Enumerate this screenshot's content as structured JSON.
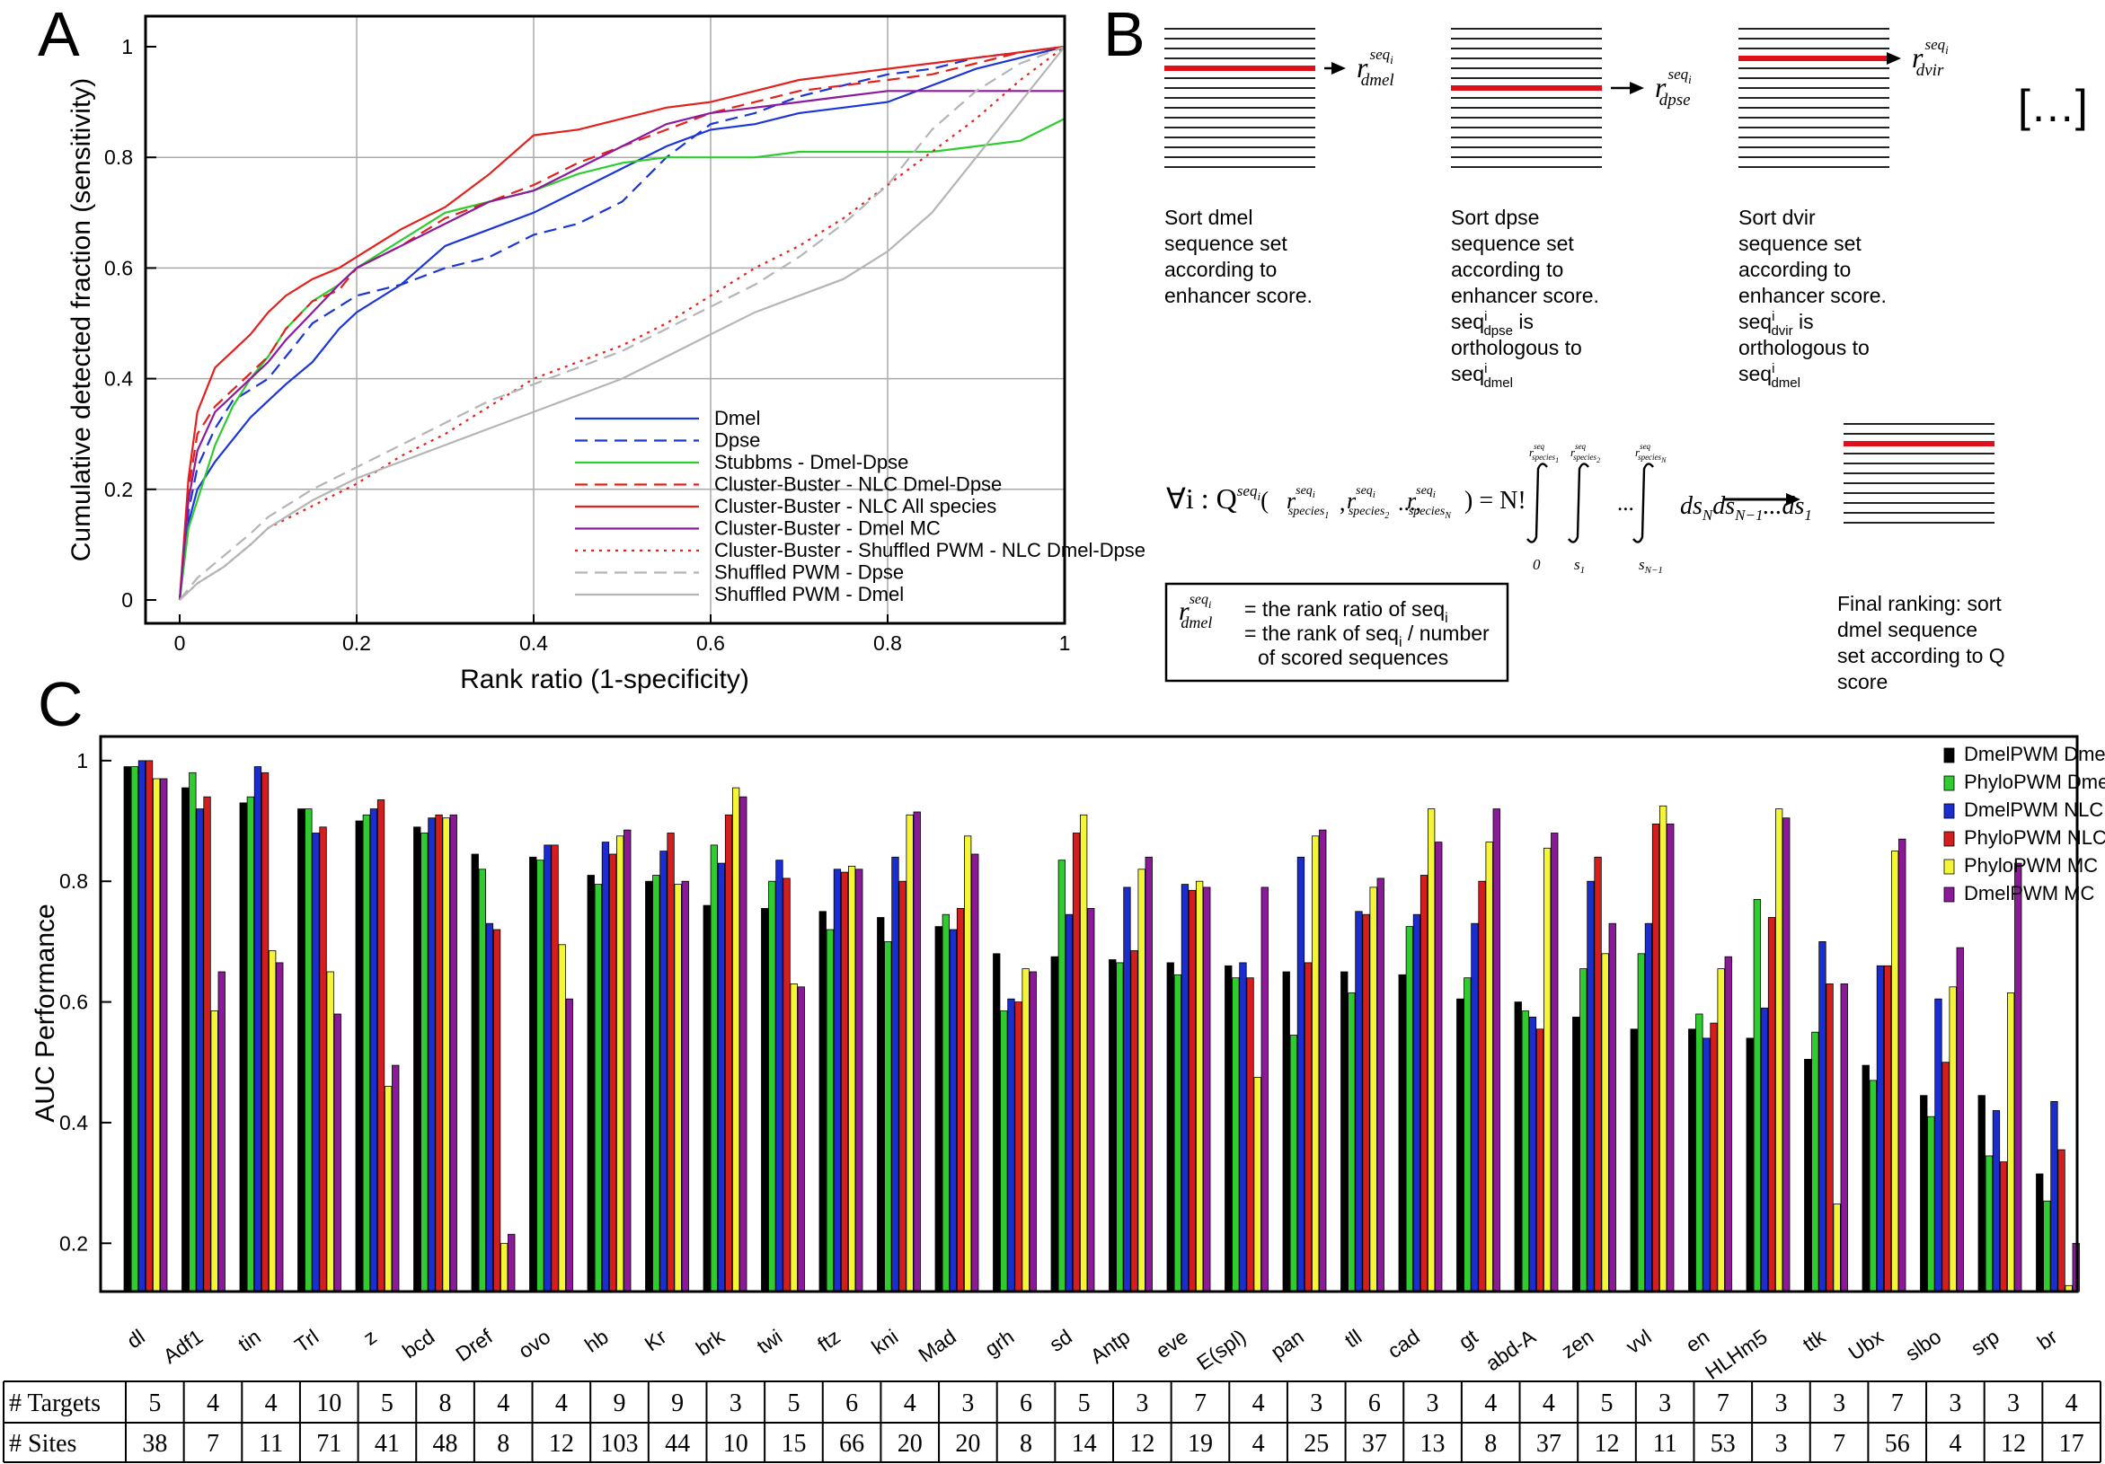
{
  "panels": {
    "a": "A",
    "b": "B",
    "c": "C"
  },
  "chart_data": [
    {
      "type": "line",
      "xlabel": "Rank ratio (1-specificity)",
      "ylabel": "Cumulative detected fraction (sensitivity)",
      "xlim": [
        0,
        1
      ],
      "ylim": [
        0,
        1
      ],
      "xticks": [
        "0",
        "0.2",
        "0.4",
        "0.6",
        "0.8",
        "1"
      ],
      "yticks": [
        "0",
        "0.2",
        "0.4",
        "0.6",
        "0.8",
        "1"
      ],
      "grid": true,
      "legend_position": "bottom-right",
      "series": [
        {
          "name": "Dmel",
          "color": "#1a35d8",
          "dash": "solid",
          "x": [
            0,
            0.01,
            0.02,
            0.04,
            0.06,
            0.08,
            0.1,
            0.12,
            0.15,
            0.18,
            0.2,
            0.25,
            0.3,
            0.35,
            0.4,
            0.45,
            0.5,
            0.55,
            0.6,
            0.65,
            0.7,
            0.75,
            0.8,
            0.85,
            0.9,
            0.95,
            1
          ],
          "y": [
            0,
            0.14,
            0.2,
            0.25,
            0.29,
            0.33,
            0.36,
            0.39,
            0.43,
            0.49,
            0.52,
            0.57,
            0.64,
            0.67,
            0.7,
            0.74,
            0.78,
            0.82,
            0.85,
            0.86,
            0.88,
            0.89,
            0.9,
            0.93,
            0.96,
            0.98,
            1
          ]
        },
        {
          "name": "Dpse",
          "color": "#1a35d8",
          "dash": "dashed",
          "x": [
            0,
            0.01,
            0.02,
            0.04,
            0.06,
            0.08,
            0.1,
            0.12,
            0.15,
            0.18,
            0.2,
            0.25,
            0.3,
            0.35,
            0.4,
            0.45,
            0.5,
            0.55,
            0.6,
            0.65,
            0.7,
            0.75,
            0.8,
            0.85,
            0.9,
            0.95,
            1
          ],
          "y": [
            0,
            0.16,
            0.24,
            0.31,
            0.36,
            0.38,
            0.4,
            0.44,
            0.5,
            0.53,
            0.55,
            0.57,
            0.6,
            0.62,
            0.66,
            0.68,
            0.72,
            0.8,
            0.86,
            0.88,
            0.91,
            0.93,
            0.95,
            0.96,
            0.98,
            0.99,
            1
          ]
        },
        {
          "name": "Stubbms - Dmel-Dpse",
          "color": "#2ecc2e",
          "dash": "solid",
          "x": [
            0,
            0.01,
            0.02,
            0.04,
            0.06,
            0.08,
            0.1,
            0.12,
            0.15,
            0.18,
            0.2,
            0.25,
            0.3,
            0.35,
            0.4,
            0.45,
            0.5,
            0.55,
            0.6,
            0.65,
            0.7,
            0.75,
            0.8,
            0.85,
            0.9,
            0.95,
            1
          ],
          "y": [
            0,
            0.13,
            0.18,
            0.28,
            0.35,
            0.4,
            0.44,
            0.49,
            0.54,
            0.57,
            0.6,
            0.65,
            0.7,
            0.72,
            0.74,
            0.77,
            0.79,
            0.8,
            0.8,
            0.8,
            0.81,
            0.81,
            0.81,
            0.81,
            0.82,
            0.83,
            0.87
          ]
        },
        {
          "name": "Cluster-Buster - NLC Dmel-Dpse",
          "color": "#e3201b",
          "dash": "dashed",
          "x": [
            0,
            0.01,
            0.02,
            0.04,
            0.06,
            0.08,
            0.1,
            0.12,
            0.15,
            0.18,
            0.2,
            0.25,
            0.3,
            0.35,
            0.4,
            0.45,
            0.5,
            0.55,
            0.6,
            0.65,
            0.7,
            0.75,
            0.8,
            0.85,
            0.9,
            0.95,
            1
          ],
          "y": [
            0,
            0.2,
            0.3,
            0.35,
            0.38,
            0.41,
            0.44,
            0.49,
            0.54,
            0.56,
            0.6,
            0.64,
            0.69,
            0.72,
            0.75,
            0.79,
            0.82,
            0.85,
            0.88,
            0.9,
            0.92,
            0.93,
            0.94,
            0.95,
            0.97,
            0.99,
            1
          ]
        },
        {
          "name": "Cluster-Buster - NLC All species",
          "color": "#e3201b",
          "dash": "solid",
          "x": [
            0,
            0.01,
            0.02,
            0.04,
            0.06,
            0.08,
            0.1,
            0.12,
            0.15,
            0.18,
            0.2,
            0.25,
            0.3,
            0.35,
            0.4,
            0.45,
            0.5,
            0.55,
            0.6,
            0.65,
            0.7,
            0.75,
            0.8,
            0.85,
            0.9,
            0.95,
            1
          ],
          "y": [
            0,
            0.22,
            0.34,
            0.42,
            0.45,
            0.48,
            0.52,
            0.55,
            0.58,
            0.6,
            0.62,
            0.67,
            0.71,
            0.77,
            0.84,
            0.85,
            0.87,
            0.89,
            0.9,
            0.92,
            0.94,
            0.95,
            0.96,
            0.97,
            0.98,
            0.99,
            1
          ]
        },
        {
          "name": "Cluster-Buster - Dmel MC",
          "color": "#8c1a9c",
          "dash": "solid",
          "x": [
            0,
            0.01,
            0.02,
            0.04,
            0.06,
            0.08,
            0.1,
            0.12,
            0.15,
            0.18,
            0.2,
            0.25,
            0.3,
            0.35,
            0.4,
            0.45,
            0.5,
            0.55,
            0.6,
            0.65,
            0.7,
            0.75,
            0.8,
            0.85,
            0.9,
            0.95,
            1
          ],
          "y": [
            0,
            0.18,
            0.27,
            0.34,
            0.37,
            0.4,
            0.43,
            0.47,
            0.52,
            0.57,
            0.6,
            0.64,
            0.68,
            0.72,
            0.74,
            0.78,
            0.82,
            0.86,
            0.88,
            0.89,
            0.9,
            0.91,
            0.92,
            0.92,
            0.92,
            0.92,
            0.92
          ]
        },
        {
          "name": "Cluster-Buster - Shuffled PWM - NLC Dmel-Dpse",
          "color": "#e3201b",
          "dash": "dotted",
          "x": [
            0,
            0.02,
            0.05,
            0.08,
            0.1,
            0.15,
            0.2,
            0.25,
            0.3,
            0.35,
            0.4,
            0.45,
            0.5,
            0.55,
            0.6,
            0.65,
            0.7,
            0.75,
            0.8,
            0.85,
            0.9,
            0.95,
            1
          ],
          "y": [
            0,
            0.03,
            0.06,
            0.1,
            0.13,
            0.17,
            0.21,
            0.26,
            0.3,
            0.35,
            0.4,
            0.43,
            0.46,
            0.5,
            0.55,
            0.6,
            0.64,
            0.69,
            0.75,
            0.81,
            0.87,
            0.94,
            1
          ]
        },
        {
          "name": "Shuffled PWM - Dpse",
          "color": "#b5b5b5",
          "dash": "dashed",
          "x": [
            0,
            0.02,
            0.05,
            0.08,
            0.1,
            0.15,
            0.2,
            0.25,
            0.3,
            0.35,
            0.4,
            0.45,
            0.5,
            0.55,
            0.6,
            0.65,
            0.7,
            0.75,
            0.8,
            0.85,
            0.9,
            0.95,
            1
          ],
          "y": [
            0,
            0.04,
            0.08,
            0.12,
            0.15,
            0.2,
            0.24,
            0.28,
            0.32,
            0.36,
            0.39,
            0.42,
            0.45,
            0.49,
            0.53,
            0.57,
            0.62,
            0.68,
            0.75,
            0.85,
            0.92,
            0.97,
            1
          ]
        },
        {
          "name": "Shuffled PWM - Dmel",
          "color": "#b5b5b5",
          "dash": "solid",
          "x": [
            0,
            0.02,
            0.05,
            0.08,
            0.1,
            0.15,
            0.2,
            0.25,
            0.3,
            0.35,
            0.4,
            0.45,
            0.5,
            0.55,
            0.6,
            0.65,
            0.7,
            0.75,
            0.8,
            0.85,
            0.9,
            0.95,
            1
          ],
          "y": [
            0,
            0.03,
            0.06,
            0.1,
            0.13,
            0.18,
            0.22,
            0.25,
            0.28,
            0.31,
            0.34,
            0.37,
            0.4,
            0.44,
            0.48,
            0.52,
            0.55,
            0.58,
            0.63,
            0.7,
            0.8,
            0.9,
            1
          ]
        }
      ]
    },
    {
      "type": "bar",
      "ylabel": "AUC Performance",
      "ylim": [
        0.12,
        1.04
      ],
      "yticks": [
        "0.2",
        "0.4",
        "0.6",
        "0.8",
        "1"
      ],
      "legend_position": "top-right",
      "categories": [
        "dl",
        "Adf1",
        "tin",
        "Trl",
        "z",
        "bcd",
        "Dref",
        "ovo",
        "hb",
        "Kr",
        "brk",
        "twi",
        "ftz",
        "kni",
        "Mad",
        "grh",
        "sd",
        "Antp",
        "eve",
        "E(spl)",
        "pan",
        "tll",
        "cad",
        "gt",
        "abd-A",
        "zen",
        "vvl",
        "en",
        "HLHm5",
        "ttk",
        "Ubx",
        "slbo",
        "srp",
        "br"
      ],
      "series": [
        {
          "name": "DmelPWM Dmel",
          "color": "#000000",
          "values": [
            0.99,
            0.955,
            0.93,
            0.92,
            0.9,
            0.89,
            0.845,
            0.84,
            0.81,
            0.8,
            0.76,
            0.755,
            0.75,
            0.74,
            0.725,
            0.68,
            0.675,
            0.67,
            0.665,
            0.66,
            0.65,
            0.65,
            0.645,
            0.605,
            0.6,
            0.575,
            0.555,
            0.555,
            0.54,
            0.505,
            0.495,
            0.445,
            0.445,
            0.315
          ]
        },
        {
          "name": "PhyloPWM Dmel",
          "color": "#2ecc2e",
          "values": [
            0.99,
            0.98,
            0.94,
            0.92,
            0.91,
            0.88,
            0.82,
            0.835,
            0.795,
            0.81,
            0.86,
            0.8,
            0.72,
            0.7,
            0.745,
            0.585,
            0.835,
            0.665,
            0.645,
            0.64,
            0.545,
            0.615,
            0.725,
            0.64,
            0.585,
            0.655,
            0.68,
            0.58,
            0.77,
            0.55,
            0.47,
            0.41,
            0.345,
            0.27
          ]
        },
        {
          "name": "DmelPWM NLC",
          "color": "#1a2ed0",
          "values": [
            1.0,
            0.92,
            0.99,
            0.88,
            0.92,
            0.905,
            0.73,
            0.86,
            0.865,
            0.85,
            0.83,
            0.835,
            0.82,
            0.84,
            0.72,
            0.605,
            0.745,
            0.79,
            0.795,
            0.665,
            0.84,
            0.75,
            0.745,
            0.73,
            0.575,
            0.8,
            0.73,
            0.54,
            0.59,
            0.7,
            0.66,
            0.605,
            0.42,
            0.435
          ]
        },
        {
          "name": "PhyloPWM NLC",
          "color": "#d41e1e",
          "values": [
            1.0,
            0.94,
            0.98,
            0.89,
            0.935,
            0.91,
            0.72,
            0.86,
            0.845,
            0.88,
            0.91,
            0.805,
            0.815,
            0.8,
            0.755,
            0.6,
            0.88,
            0.685,
            0.785,
            0.64,
            0.665,
            0.745,
            0.81,
            0.8,
            0.555,
            0.84,
            0.895,
            0.565,
            0.74,
            0.63,
            0.66,
            0.5,
            0.335,
            0.355
          ]
        },
        {
          "name": "PhyloPWM MC",
          "color": "#f5f538",
          "values": [
            0.97,
            0.585,
            0.685,
            0.65,
            0.46,
            0.905,
            0.2,
            0.695,
            0.875,
            0.795,
            0.955,
            0.63,
            0.825,
            0.91,
            0.875,
            0.655,
            0.91,
            0.82,
            0.8,
            0.475,
            0.875,
            0.79,
            0.92,
            0.865,
            0.855,
            0.68,
            0.925,
            0.655,
            0.92,
            0.265,
            0.85,
            0.625,
            0.615,
            0.13
          ]
        },
        {
          "name": "DmelPWM MC",
          "color": "#8b1a99",
          "values": [
            0.97,
            0.65,
            0.665,
            0.58,
            0.495,
            0.91,
            0.215,
            0.605,
            0.885,
            0.8,
            0.94,
            0.625,
            0.82,
            0.915,
            0.845,
            0.65,
            0.755,
            0.84,
            0.79,
            0.79,
            0.885,
            0.805,
            0.865,
            0.92,
            0.88,
            0.73,
            0.895,
            0.675,
            0.905,
            0.63,
            0.87,
            0.69,
            0.83,
            0.2
          ]
        }
      ]
    }
  ],
  "diagram_b": {
    "lists": [
      {
        "highlight_row": 4,
        "rank_base": "r",
        "rank_sup": "seq",
        "rank_sup_sub": "i",
        "rank_sub": "dmel",
        "caption": [
          "Sort dmel",
          "sequence set",
          "according to",
          "enhancer score."
        ]
      },
      {
        "highlight_row": 6,
        "rank_base": "r",
        "rank_sup": "seq",
        "rank_sup_sub": "i",
        "rank_sub": "dpse",
        "caption": [
          "Sort dpse",
          "sequence set",
          "according to",
          "enhancer score."
        ],
        "caption_extra": [
          [
            "seq",
            "i",
            "dpse",
            " is"
          ],
          [
            "orthologous to"
          ],
          [
            "seq",
            "i",
            "dmel",
            ""
          ]
        ]
      },
      {
        "highlight_row": 3,
        "rank_base": "r",
        "rank_sup": "seq",
        "rank_sup_sub": "i",
        "rank_sub": "dvir",
        "caption": [
          "Sort dvir",
          "sequence set",
          "according to",
          "enhancer score."
        ],
        "caption_extra": [
          [
            "seq",
            "i",
            "dvir",
            " is"
          ],
          [
            "orthologous to"
          ],
          [
            "seq",
            "i",
            "dmel",
            ""
          ]
        ]
      }
    ],
    "ellipsis": "[…]",
    "formula": {
      "lhs": "∀i : Q",
      "q_sup": "seq",
      "q_sup_sub": "i",
      "args_open": "(",
      "args": [
        "species",
        "species",
        "species"
      ],
      "arg_subs": [
        "1",
        "2",
        "N"
      ],
      "args_sep": ",",
      "args_dots": "...,",
      "args_close": ") = N!",
      "int_lower": [
        "0",
        "s",
        "s"
      ],
      "int_lower_subs": [
        "",
        "1",
        "N−1"
      ],
      "int_dots": "...",
      "integrand": [
        "ds",
        "N",
        "ds",
        "N−1",
        "...ds",
        "1"
      ]
    },
    "definition": {
      "rank_sub": "dmel",
      "line1": "= the rank ratio of seq",
      "line1_sub": "i",
      "line2_a": "= the rank of seq",
      "line2_sub": "i",
      "line2_b": " / number",
      "line3": "of scored sequences"
    },
    "final_caption": [
      "Final ranking: sort",
      "dmel sequence",
      "set according to Q",
      "score"
    ]
  },
  "table": {
    "row_labels": [
      "# Targets",
      "# Sites"
    ],
    "targets": [
      5,
      4,
      4,
      10,
      5,
      8,
      4,
      4,
      9,
      9,
      3,
      5,
      6,
      4,
      3,
      6,
      5,
      3,
      7,
      4,
      3,
      6,
      3,
      4,
      4,
      5,
      3,
      7,
      3,
      3,
      7,
      3,
      3,
      4
    ],
    "sites": [
      38,
      7,
      11,
      71,
      41,
      48,
      8,
      12,
      103,
      44,
      10,
      15,
      66,
      20,
      20,
      8,
      14,
      12,
      19,
      4,
      25,
      37,
      13,
      8,
      37,
      12,
      11,
      53,
      3,
      7,
      56,
      4,
      12,
      17
    ]
  }
}
